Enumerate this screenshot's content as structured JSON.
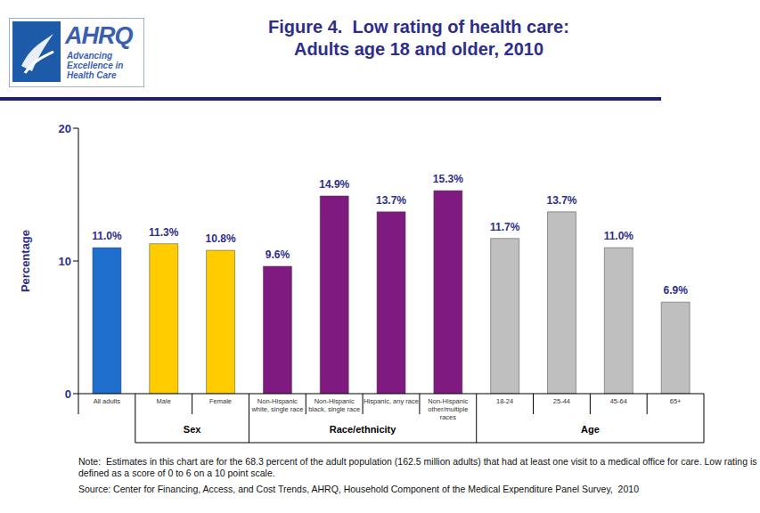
{
  "header": {
    "logo_name": "AHRQ",
    "logo_tagline": [
      "Advancing",
      "Excellence in",
      "Health Care"
    ]
  },
  "chart_data": {
    "type": "bar",
    "title": "Figure 4.  Low rating of health care:",
    "subtitle": "Adults age 18 and older, 2010",
    "y_label": "Percentage",
    "categories": [
      "All adults",
      "Male",
      "Female",
      "Non-Hispanic white, single race",
      "Non-Hispanic black, single race",
      "Hispanic, any race",
      "Non-Hispanic other/multiple races",
      "18-24",
      "25-44",
      "45-64",
      "65+"
    ],
    "values": [
      11.0,
      11.3,
      10.8,
      9.6,
      14.9,
      13.7,
      15.3,
      11.7,
      13.7,
      11.0,
      6.9
    ],
    "value_labels": [
      "11.0%",
      "11.3%",
      "10.8%",
      "9.6%",
      "14.9%",
      "13.7%",
      "15.3%",
      "11.7%",
      "13.7%",
      "11.0%",
      "6.9%"
    ],
    "colors": [
      "#1f6fcf",
      "#ffcc00",
      "#ffcc00",
      "#7f1a80",
      "#7f1a80",
      "#7f1a80",
      "#7f1a80",
      "#bfbfbf",
      "#bfbfbf",
      "#bfbfbf",
      "#bfbfbf"
    ],
    "groups": [
      {
        "name": "Sex",
        "categories": [
          "Male",
          "Female"
        ]
      },
      {
        "name": "Race/ethnicity",
        "categories": [
          "Non-Hispanic white, single race",
          "Non-Hispanic black, single race",
          "Hispanic, any race",
          "Non-Hispanic other/multiple races"
        ]
      },
      {
        "name": "Age",
        "categories": [
          "18-24",
          "25-44",
          "45-64",
          "65+"
        ]
      }
    ],
    "ylim": [
      0,
      20
    ],
    "yticks": [
      0,
      10,
      20
    ],
    "data_labels": true,
    "grid": false
  },
  "footer": {
    "note": "Note:  Estimates in this chart are for the 68.3 percent of the adult population (162.5 million adults) that had at least one visit to a medical office for care. Low rating is defined as a score of 0 to 6 on a 10 point scale.",
    "source": "Source: Center for Financing, Access, and Cost Trends, AHRQ, Household Component of the Medical Expenditure Panel Survey,  2010"
  }
}
